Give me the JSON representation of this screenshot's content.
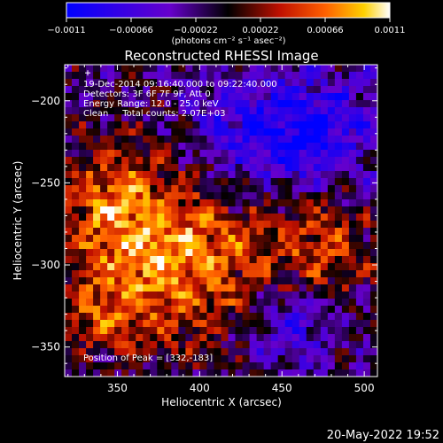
{
  "chart_data": {
    "type": "heatmap",
    "title": "Reconstructed RHESSI Image",
    "xlabel": "Heliocentric X (arcsec)",
    "ylabel": "Heliocentric Y (arcsec)",
    "xlim": [
      318,
      508
    ],
    "ylim": [
      -368,
      -178
    ],
    "x_ticks": [
      350,
      400,
      450,
      500
    ],
    "y_ticks": [
      -200,
      -250,
      -300,
      -350
    ],
    "x_tick_labels": [
      "350",
      "400",
      "450",
      "500"
    ],
    "y_tick_labels": [
      "−200",
      "−250",
      "−300",
      "−350"
    ],
    "colorbar": {
      "range": [
        -0.0011,
        0.0011
      ],
      "tick_labels": [
        "−0.0011",
        "−0.00066",
        "−0.00022",
        "0.00022",
        "0.00066",
        "0.0011"
      ],
      "units_label": "(photons cm⁻² s⁻¹ asec⁻²)"
    },
    "annotations": [
      "19-Dec-2014 09:16:40.000 to 09:22:40.000",
      "Detectors: 3F 6F 7F 9F, Att 0",
      "Energy Range: 12.0 - 25.0 keV",
      "Clean     Total counts: 2.07E+03"
    ],
    "peak_label": "Position of Peak = [332,-183]",
    "peak": {
      "x": 332,
      "y": -183
    },
    "grid": false
  },
  "footer": {
    "date": "20-May-2022 19:52"
  }
}
